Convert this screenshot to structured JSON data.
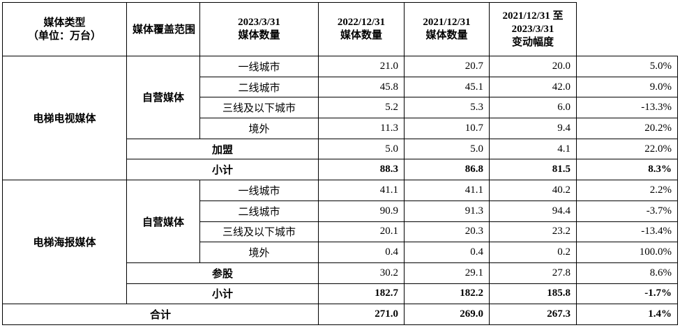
{
  "table": {
    "header": [
      [
        "媒体类型",
        "（单位：万台）"
      ],
      [
        "媒体覆盖范围"
      ],
      [
        "2023/3/31",
        "媒体数量"
      ],
      [
        "2022/12/31",
        "媒体数量"
      ],
      [
        "2021/12/31",
        "媒体数量"
      ],
      [
        "2021/12/31 至",
        "2023/3/31",
        "变动幅度"
      ]
    ],
    "groups": [
      {
        "name": "电梯电视媒体",
        "subgroup": "自营媒体",
        "regions": [
          {
            "name": "一线城市",
            "values": [
              "21.0",
              "20.7",
              "20.0",
              "5.0%"
            ]
          },
          {
            "name": "二线城市",
            "values": [
              "45.8",
              "45.1",
              "42.0",
              "9.0%"
            ]
          },
          {
            "name": "三线及以下城市",
            "values": [
              "5.2",
              "5.3",
              "6.0",
              "-13.3%"
            ]
          },
          {
            "name": "境外",
            "values": [
              "11.3",
              "10.7",
              "9.4",
              "20.2%"
            ]
          }
        ],
        "other": {
          "name": "加盟",
          "values": [
            "5.0",
            "5.0",
            "4.1",
            "22.0%"
          ]
        },
        "subtotal": {
          "name": "小计",
          "values": [
            "88.3",
            "86.8",
            "81.5",
            "8.3%"
          ]
        }
      },
      {
        "name": "电梯海报媒体",
        "subgroup": "自营媒体",
        "regions": [
          {
            "name": "一线城市",
            "values": [
              "41.1",
              "41.1",
              "40.2",
              "2.2%"
            ]
          },
          {
            "name": "二线城市",
            "values": [
              "90.9",
              "91.3",
              "94.4",
              "-3.7%"
            ]
          },
          {
            "name": "三线及以下城市",
            "values": [
              "20.1",
              "20.3",
              "23.2",
              "-13.4%"
            ]
          },
          {
            "name": "境外",
            "values": [
              "0.4",
              "0.4",
              "0.2",
              "100.0%"
            ]
          }
        ],
        "other": {
          "name": "参股",
          "values": [
            "30.2",
            "29.1",
            "27.8",
            "8.6%"
          ]
        },
        "subtotal": {
          "name": "小计",
          "values": [
            "182.7",
            "182.2",
            "185.8",
            "-1.7%"
          ]
        }
      }
    ],
    "total": {
      "name": "合计",
      "values": [
        "271.0",
        "269.0",
        "267.3",
        "1.4%"
      ]
    }
  }
}
